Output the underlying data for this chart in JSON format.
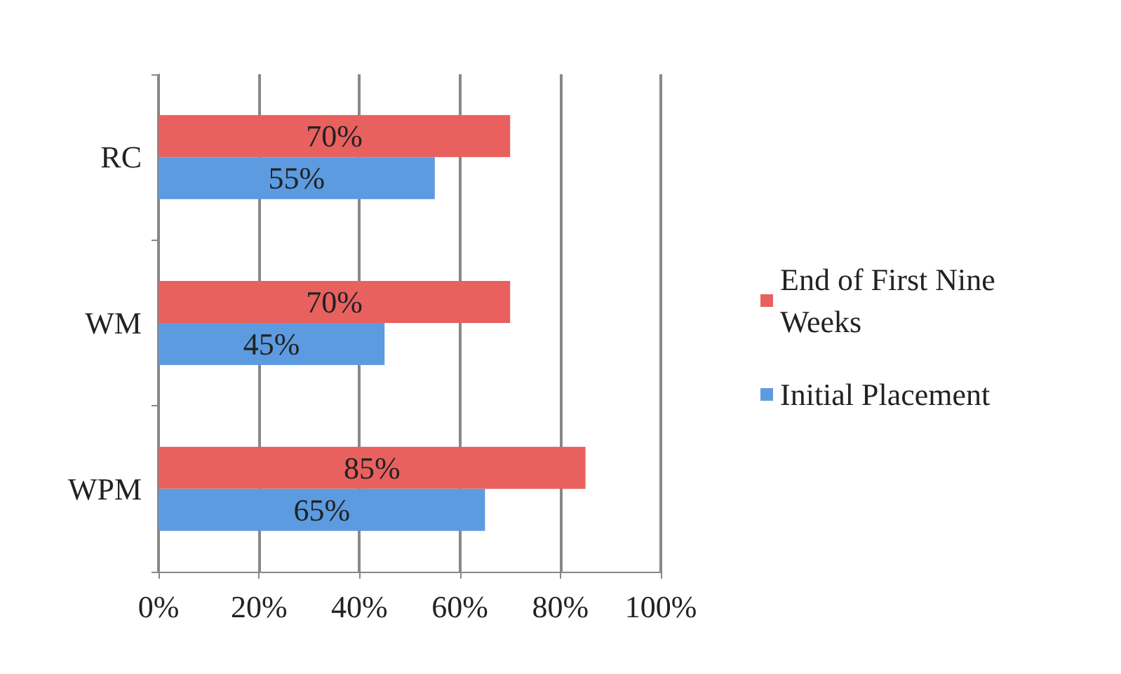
{
  "chart_data": {
    "type": "bar",
    "orientation": "horizontal",
    "categories": [
      "RC",
      "WM",
      "WPM"
    ],
    "series": [
      {
        "name": "End of First Nine Weeks",
        "color": "#e8615f",
        "values": [
          70,
          70,
          85
        ],
        "value_labels": [
          "70%",
          "70%",
          "85%"
        ]
      },
      {
        "name": "Initial Placement",
        "color": "#5c9be0",
        "values": [
          55,
          45,
          65
        ],
        "value_labels": [
          "55%",
          "45%",
          "65%"
        ]
      }
    ],
    "xlim": [
      0,
      100
    ],
    "xticks": [
      {
        "value": 0,
        "label": "0%"
      },
      {
        "value": 20,
        "label": "20%"
      },
      {
        "value": 40,
        "label": "40%"
      },
      {
        "value": 60,
        "label": "60%"
      },
      {
        "value": 80,
        "label": "80%"
      },
      {
        "value": 100,
        "label": "100%"
      }
    ],
    "grid": "x",
    "legend": "right"
  }
}
